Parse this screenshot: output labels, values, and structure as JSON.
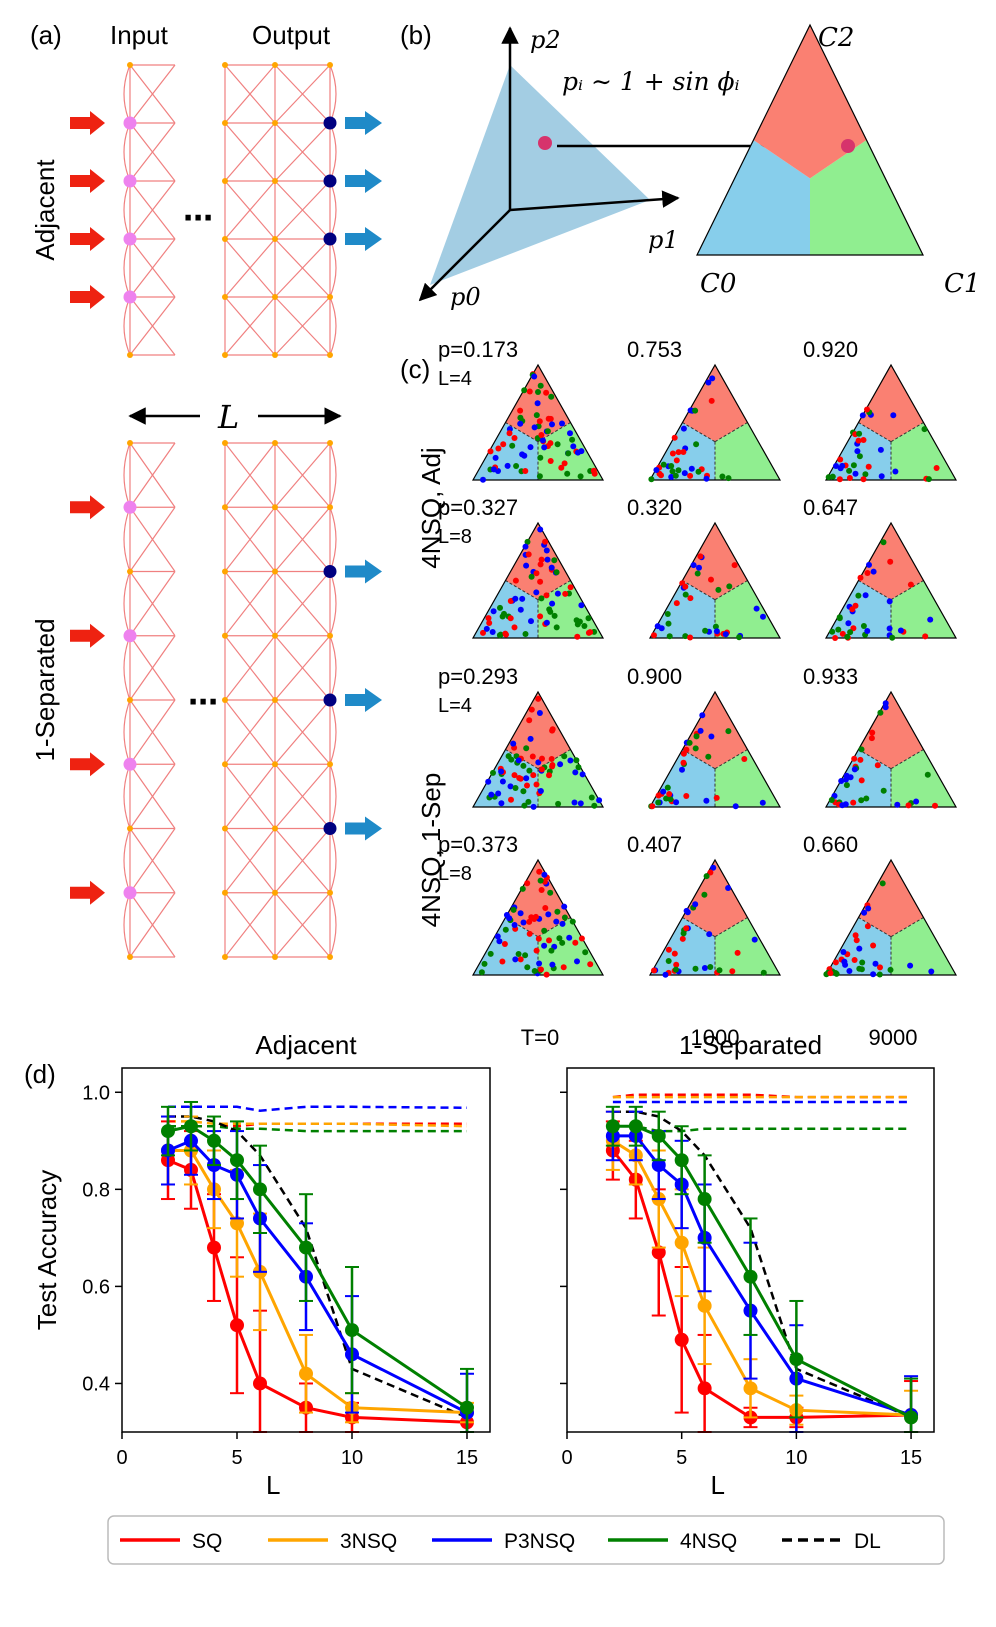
{
  "panel_labels": {
    "a": "(a)",
    "b": "(b)",
    "c": "(c)",
    "d": "(d)"
  },
  "panel_a": {
    "input_label": "Input",
    "output_label": "Output",
    "adjacent_label": "Adjacent",
    "separated_label": "1-Separated",
    "length_label": "L",
    "ellipsis": "⋯"
  },
  "panel_b": {
    "axis_p0": "p0",
    "axis_p1": "p1",
    "axis_p2": "p2",
    "formula": "pᵢ ∼ 1 + sin ϕᵢ",
    "corner_c0": "C0",
    "corner_c1": "C1",
    "corner_c2": "C2"
  },
  "panel_c": {
    "row_group_labels": [
      "4NSQ, Adj",
      "4NSQ, 1-Sep"
    ],
    "rows": [
      {
        "L_label": "L=4",
        "p_labels": [
          "p=0.173",
          "0.753",
          "0.920"
        ]
      },
      {
        "L_label": "L=8",
        "p_labels": [
          "p=0.327",
          "0.320",
          "0.647"
        ]
      },
      {
        "L_label": "L=4",
        "p_labels": [
          "p=0.293",
          "0.900",
          "0.933"
        ]
      },
      {
        "L_label": "L=8",
        "p_labels": [
          "p=0.373",
          "0.407",
          "0.660"
        ]
      }
    ],
    "time_labels": [
      "T=0",
      "1000",
      "9000"
    ]
  },
  "colors": {
    "SQ": "#ff0000",
    "3NSQ": "#ffa500",
    "P3NSQ": "#0000ff",
    "4NSQ": "#008000",
    "DL": "#000000",
    "region_red": "#fa8072",
    "region_blue": "#87ceeb",
    "region_green": "#90ee90",
    "edge_pink": "#f08080",
    "node_orange": "#ffa500",
    "node_violet": "#ee82ee",
    "node_navy": "#000080",
    "arrow_red": "#ee2211",
    "arrow_blue": "#1f8ac8"
  },
  "chart_data": [
    {
      "type": "line",
      "title": "Adjacent",
      "xlabel": "L",
      "ylabel": "Test Accuracy",
      "xlim": [
        0,
        16
      ],
      "ylim": [
        0.3,
        1.05
      ],
      "xticks": [
        "0",
        "5",
        "10",
        "15"
      ],
      "yticks": [
        "0.4",
        "0.6",
        "0.8",
        "1.0"
      ],
      "x": [
        2,
        3,
        4,
        5,
        6,
        8,
        10,
        15
      ],
      "series": [
        {
          "name": "SQ",
          "values": [
            0.86,
            0.84,
            0.68,
            0.52,
            0.4,
            0.35,
            0.33,
            0.32
          ],
          "err": [
            0.08,
            0.08,
            0.11,
            0.14,
            0.15,
            0.05,
            0.03,
            0.02
          ]
        },
        {
          "name": "3NSQ",
          "values": [
            0.88,
            0.88,
            0.8,
            0.73,
            0.63,
            0.42,
            0.35,
            0.34
          ],
          "err": [
            0.07,
            0.07,
            0.08,
            0.11,
            0.12,
            0.08,
            0.03,
            0.02
          ]
        },
        {
          "name": "P3NSQ",
          "values": [
            0.88,
            0.9,
            0.85,
            0.83,
            0.74,
            0.62,
            0.46,
            0.34
          ],
          "err": [
            0.07,
            0.07,
            0.07,
            0.09,
            0.11,
            0.11,
            0.12,
            0.08
          ]
        },
        {
          "name": "4NSQ",
          "values": [
            0.92,
            0.93,
            0.9,
            0.86,
            0.8,
            0.68,
            0.51,
            0.35
          ],
          "err": [
            0.05,
            0.05,
            0.05,
            0.08,
            0.09,
            0.11,
            0.13,
            0.08
          ]
        }
      ],
      "dashed_series": [
        {
          "name": "SQ",
          "values": [
            0.93,
            0.93,
            0.93,
            0.93,
            0.935,
            0.935,
            0.935,
            0.935
          ]
        },
        {
          "name": "3NSQ",
          "values": [
            0.94,
            0.94,
            0.935,
            0.935,
            0.935,
            0.935,
            0.935,
            0.93
          ]
        },
        {
          "name": "P3NSQ",
          "values": [
            0.97,
            0.97,
            0.97,
            0.97,
            0.962,
            0.97,
            0.97,
            0.968
          ]
        },
        {
          "name": "4NSQ",
          "values": [
            0.93,
            0.93,
            0.93,
            0.925,
            0.925,
            0.92,
            0.92,
            0.92
          ]
        },
        {
          "name": "DL",
          "values": [
            0.95,
            0.95,
            0.94,
            0.92,
            0.87,
            0.72,
            0.43,
            0.33
          ]
        }
      ]
    },
    {
      "type": "line",
      "title": "1-Separated",
      "xlabel": "L",
      "ylabel": "",
      "xlim": [
        0,
        16
      ],
      "ylim": [
        0.3,
        1.05
      ],
      "xticks": [
        "0",
        "5",
        "10",
        "15"
      ],
      "yticks": [],
      "x": [
        2,
        3,
        4,
        5,
        6,
        8,
        10,
        15
      ],
      "series": [
        {
          "name": "SQ",
          "values": [
            0.88,
            0.82,
            0.67,
            0.49,
            0.39,
            0.33,
            0.33,
            0.335
          ],
          "err": [
            0.06,
            0.08,
            0.13,
            0.15,
            0.11,
            0.02,
            0.02,
            0.07
          ]
        },
        {
          "name": "3NSQ",
          "values": [
            0.9,
            0.87,
            0.78,
            0.69,
            0.56,
            0.39,
            0.345,
            0.335
          ],
          "err": [
            0.06,
            0.06,
            0.1,
            0.11,
            0.12,
            0.06,
            0.03,
            0.05
          ]
        },
        {
          "name": "P3NSQ",
          "values": [
            0.91,
            0.91,
            0.85,
            0.81,
            0.7,
            0.55,
            0.41,
            0.335
          ],
          "err": [
            0.05,
            0.05,
            0.07,
            0.09,
            0.11,
            0.14,
            0.11,
            0.08
          ]
        },
        {
          "name": "4NSQ",
          "values": [
            0.93,
            0.93,
            0.91,
            0.86,
            0.78,
            0.62,
            0.45,
            0.33
          ],
          "err": [
            0.04,
            0.04,
            0.05,
            0.07,
            0.09,
            0.12,
            0.12,
            0.08
          ]
        }
      ],
      "dashed_series": [
        {
          "name": "SQ",
          "values": [
            0.99,
            0.995,
            0.995,
            0.995,
            0.995,
            0.995,
            0.99,
            0.99
          ]
        },
        {
          "name": "3NSQ",
          "values": [
            0.99,
            0.99,
            0.99,
            0.99,
            0.99,
            0.99,
            0.99,
            0.99
          ]
        },
        {
          "name": "P3NSQ",
          "values": [
            0.98,
            0.98,
            0.98,
            0.98,
            0.98,
            0.98,
            0.98,
            0.98
          ]
        },
        {
          "name": "4NSQ",
          "values": [
            0.93,
            0.93,
            0.92,
            0.92,
            0.925,
            0.925,
            0.925,
            0.925
          ]
        },
        {
          "name": "DL",
          "values": [
            0.96,
            0.96,
            0.95,
            0.92,
            0.87,
            0.72,
            0.43,
            0.33
          ]
        }
      ]
    }
  ],
  "legend": {
    "entries": [
      {
        "label": "SQ",
        "color_key": "SQ",
        "dashed": false
      },
      {
        "label": "3NSQ",
        "color_key": "3NSQ",
        "dashed": false
      },
      {
        "label": "P3NSQ",
        "color_key": "P3NSQ",
        "dashed": false
      },
      {
        "label": "4NSQ",
        "color_key": "4NSQ",
        "dashed": false
      },
      {
        "label": "DL",
        "color_key": "DL",
        "dashed": true
      }
    ]
  }
}
